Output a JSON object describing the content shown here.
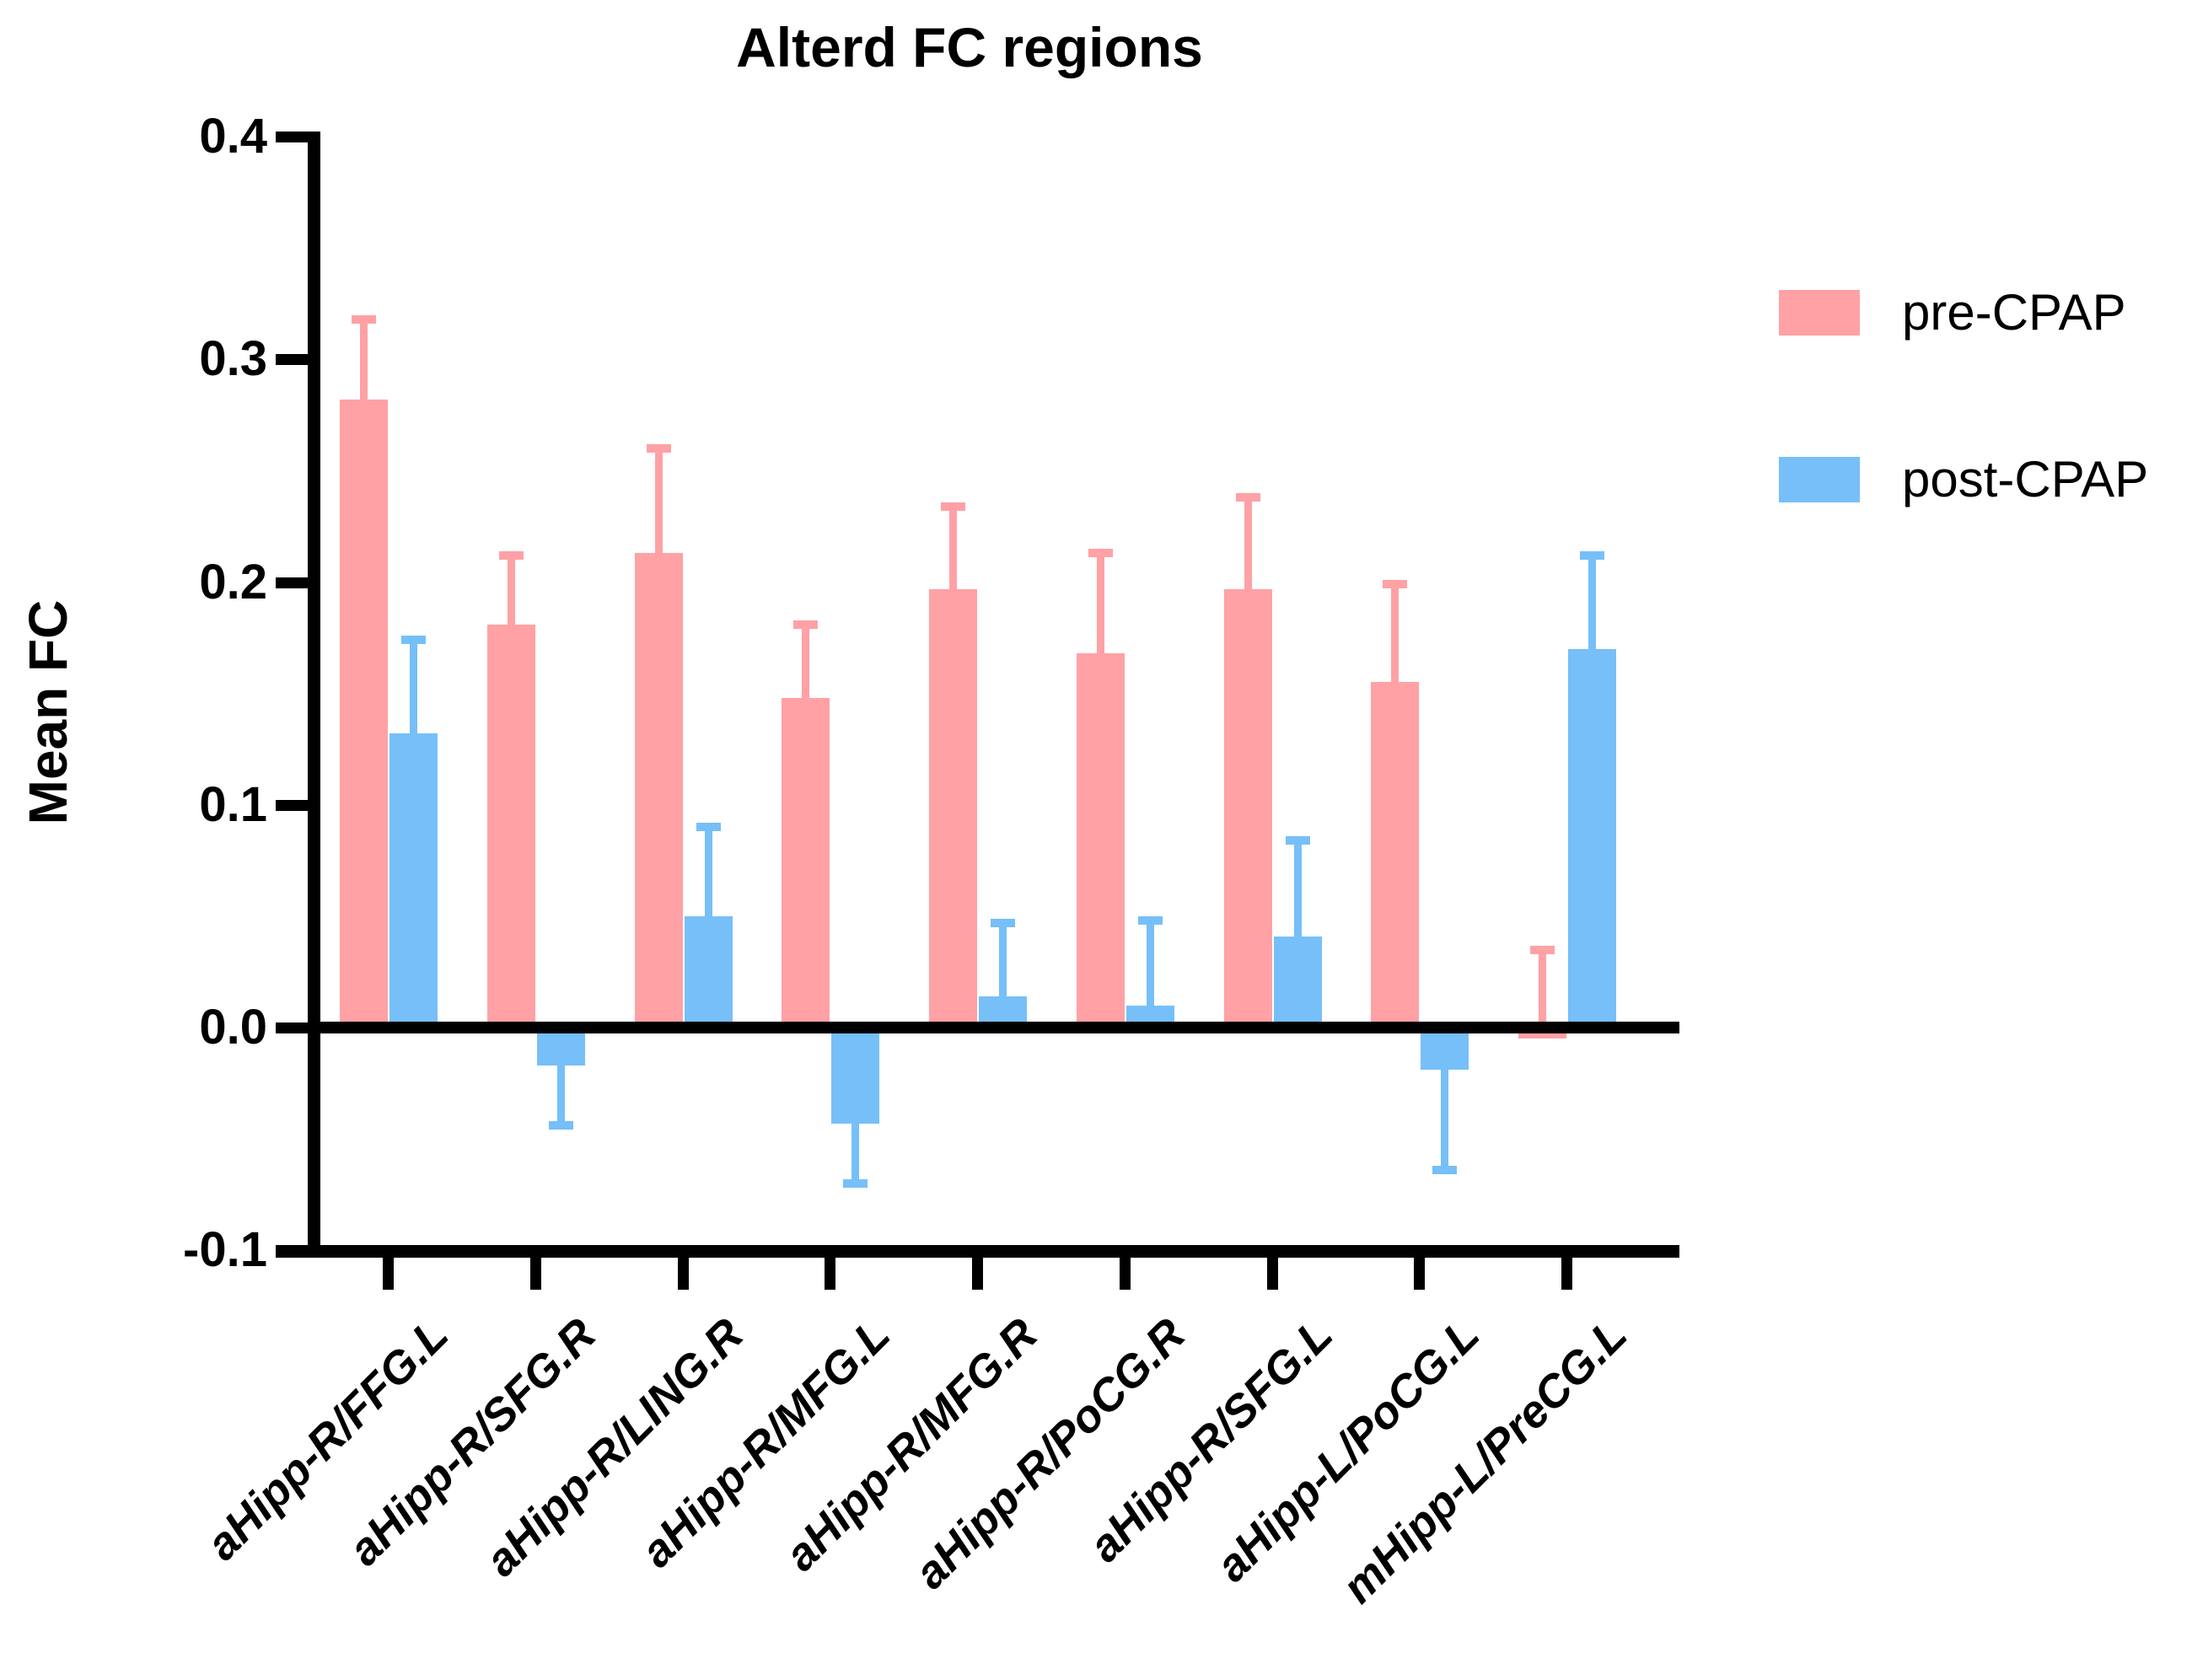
{
  "chart_data": {
    "type": "bar",
    "title": "Alterd FC regions",
    "ylabel": "Mean FC",
    "ylim": [
      -0.1,
      0.4
    ],
    "yticks": [
      0.4,
      0.3,
      0.2,
      0.1,
      0.0,
      -0.1
    ],
    "grid": false,
    "legend_position": "right-top",
    "error_bars": "one-sided whiskers with caps, away from baseline",
    "categories": [
      "aHipp-R/FFG.L",
      "aHipp-R/SFG.R",
      "aHipp-R/LING.R",
      "aHipp-R/MFG.L",
      "aHipp-R/MFG.R",
      "aHipp-R/PoCG.R",
      "aHipp-R/SFG.L",
      "aHipp-L/PoCG.L",
      "mHipp-L/PreCG.L"
    ],
    "series": [
      {
        "name": "pre-CPAP",
        "color": "#FFA1A5",
        "values": [
          0.282,
          0.181,
          0.213,
          0.148,
          0.197,
          0.168,
          0.197,
          0.155,
          -0.005
        ],
        "errors": [
          0.036,
          0.031,
          0.047,
          0.033,
          0.037,
          0.045,
          0.041,
          0.044,
          0.04
        ]
      },
      {
        "name": "post-CPAP",
        "color": "#76BFF8",
        "values": [
          0.132,
          -0.017,
          0.05,
          -0.043,
          0.014,
          0.01,
          0.041,
          -0.019,
          0.17
        ],
        "errors": [
          0.042,
          0.027,
          0.04,
          0.027,
          0.033,
          0.038,
          0.043,
          0.045,
          0.042
        ]
      }
    ]
  }
}
